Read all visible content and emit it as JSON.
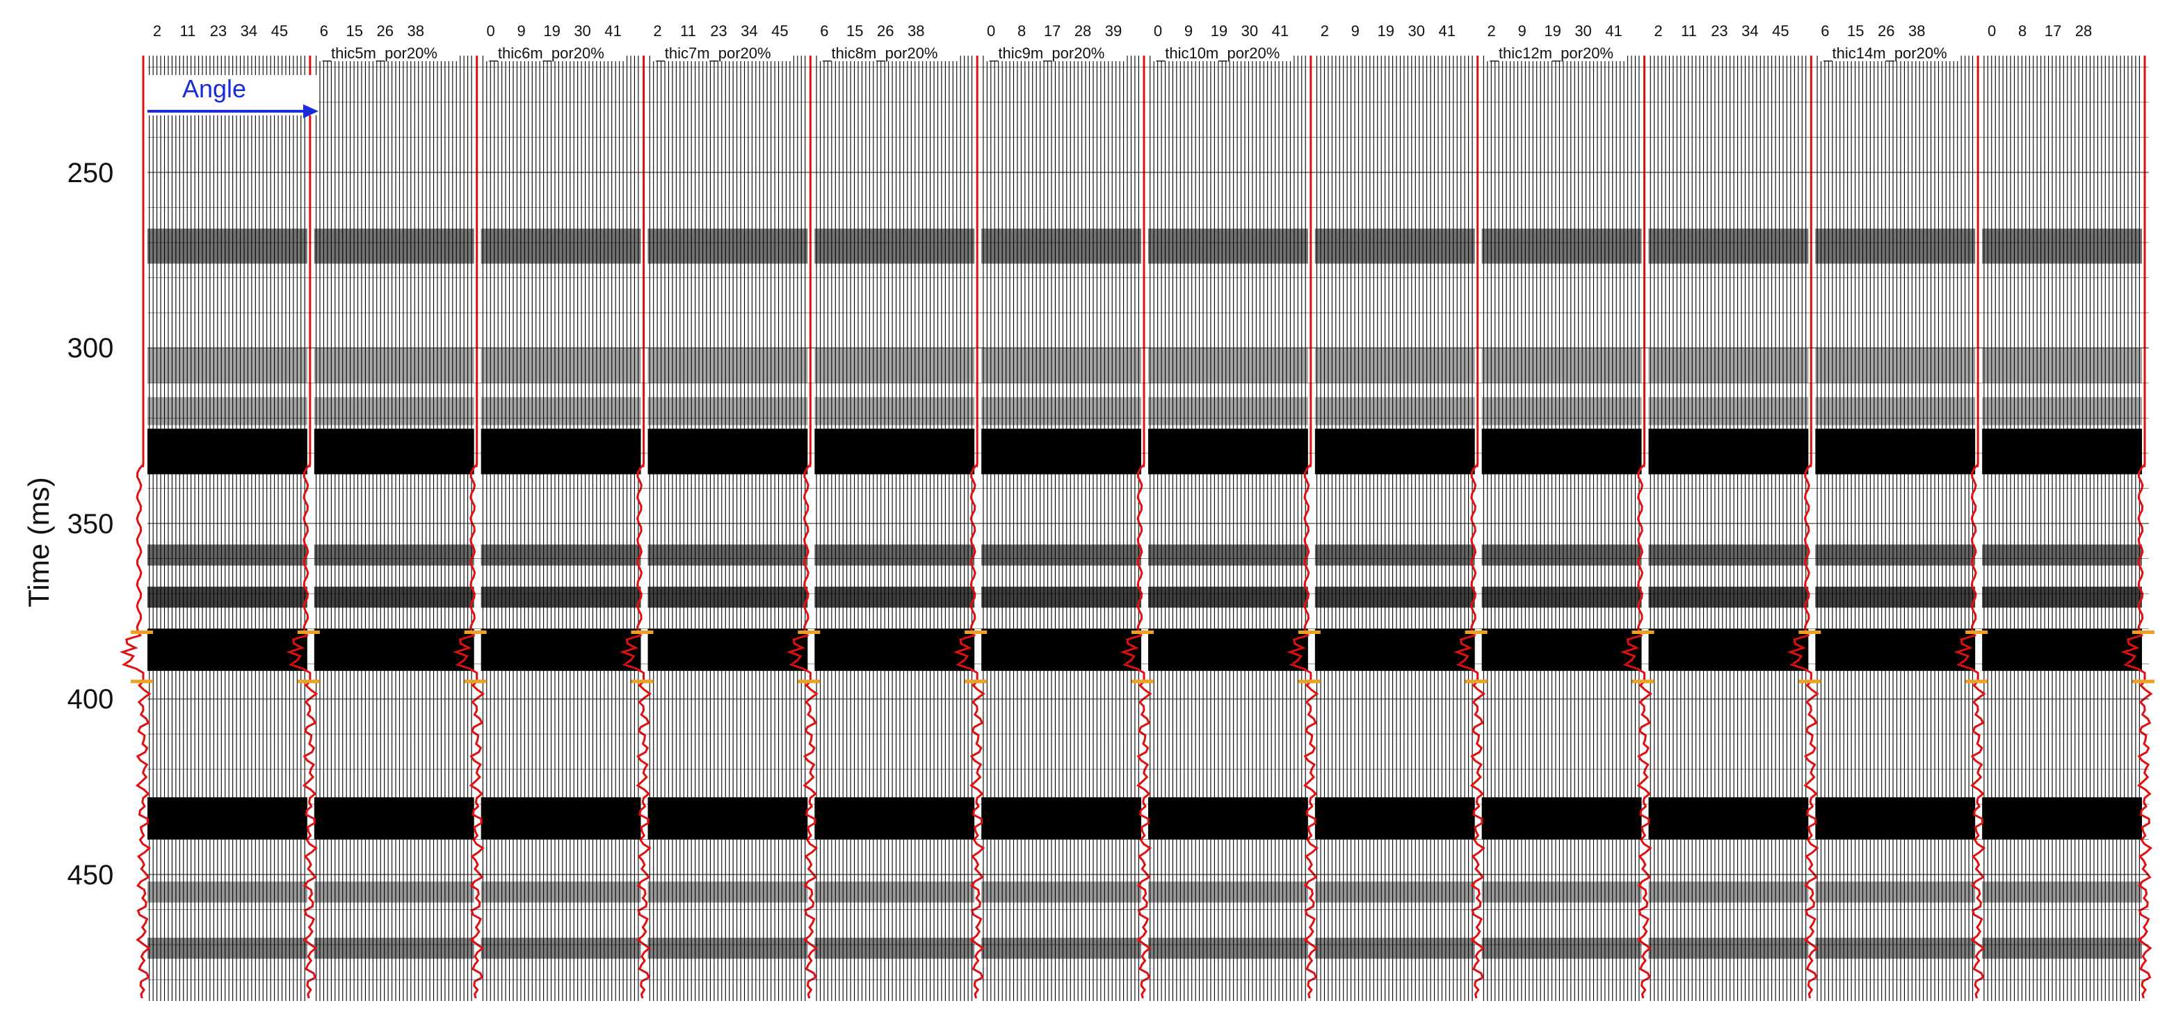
{
  "figure": {
    "y_axis_title": "Time (ms)",
    "angle_annotation": "Angle",
    "time_ticks": [
      "250",
      "300",
      "350",
      "400",
      "450"
    ],
    "panel_labels": [
      "_thic5m_por20%",
      "_thic6m_por20%",
      "_thic7m_por20%",
      "_thic8m_por20%",
      "_thic9m_por20%",
      "_thic10m_por20%",
      "_thic12m_por20%",
      "_thic14m_por20%"
    ],
    "panels": [
      {
        "angles": [
          "2",
          "11",
          "23",
          "34",
          "45"
        ]
      },
      {
        "angles": [
          "6",
          "15",
          "26",
          "38"
        ]
      },
      {
        "angles": [
          "0",
          "9",
          "19",
          "30",
          "41"
        ]
      },
      {
        "angles": [
          "2",
          "11",
          "23",
          "34",
          "45"
        ]
      },
      {
        "angles": [
          "6",
          "15",
          "26",
          "38"
        ]
      },
      {
        "angles": [
          "0",
          "8",
          "17",
          "28",
          "39"
        ]
      },
      {
        "angles": [
          "0",
          "9",
          "19",
          "30",
          "41"
        ]
      },
      {
        "angles": [
          "2",
          "9",
          "19",
          "30",
          "41"
        ]
      },
      {
        "angles": [
          "2",
          "9",
          "19",
          "30",
          "41"
        ]
      },
      {
        "angles": [
          "2",
          "11",
          "23",
          "34",
          "45"
        ]
      },
      {
        "angles": [
          "6",
          "15",
          "26",
          "38"
        ]
      },
      {
        "angles": [
          "0",
          "8",
          "17",
          "28"
        ]
      }
    ],
    "colors": {
      "wiggle": "#000000",
      "log_curve": "#e01010",
      "horizon_marker": "#f0a020",
      "angle_arrow": "#1a2bd8"
    }
  }
}
